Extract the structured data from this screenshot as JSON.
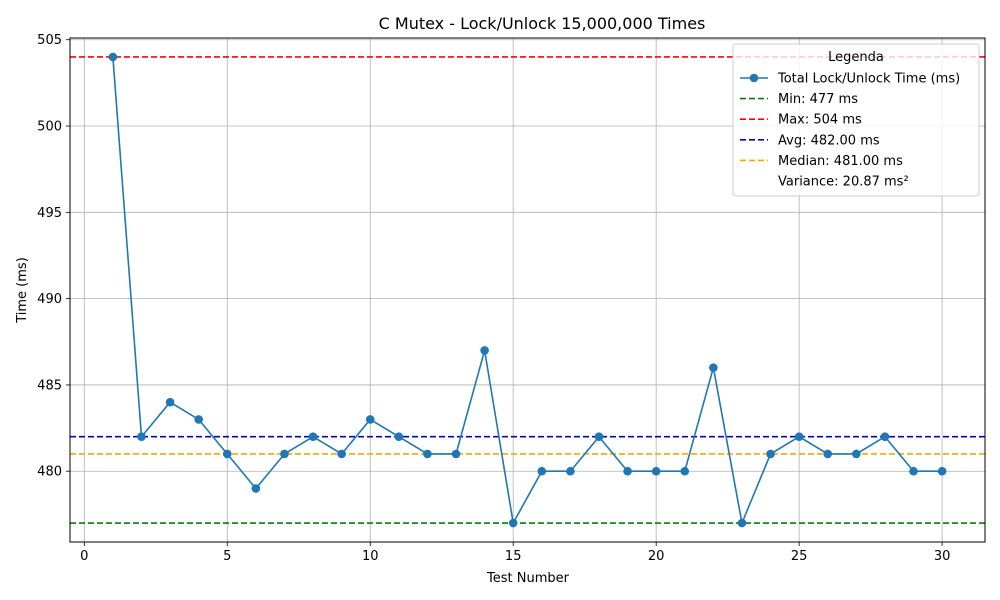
{
  "chart_data": {
    "type": "line",
    "title": "C Mutex - Lock/Unlock 15,000,000 Times",
    "xlabel": "Test Number",
    "ylabel": "Time (ms)",
    "xlim": [
      -0.5,
      31.5
    ],
    "ylim": [
      475.9,
      505.1
    ],
    "xticks": [
      0,
      5,
      10,
      15,
      20,
      25,
      30
    ],
    "yticks": [
      480,
      485,
      490,
      495,
      500,
      505
    ],
    "grid": true,
    "legend_position": "top-right",
    "legend_title": "Legenda",
    "series": [
      {
        "name": "Total Lock/Unlock Time (ms)",
        "color": "#1f77b4",
        "x": [
          1,
          2,
          3,
          4,
          5,
          6,
          7,
          8,
          9,
          10,
          11,
          12,
          13,
          14,
          15,
          16,
          17,
          18,
          19,
          20,
          21,
          22,
          23,
          24,
          25,
          26,
          27,
          28,
          29,
          30
        ],
        "values": [
          504,
          482,
          484,
          483,
          481,
          479,
          481,
          482,
          481,
          483,
          482,
          481,
          481,
          487,
          477,
          480,
          480,
          482,
          480,
          480,
          480,
          486,
          477,
          481,
          482,
          481,
          481,
          482,
          480,
          480
        ]
      }
    ],
    "reference_lines": [
      {
        "name": "Min: 477 ms",
        "value": 477,
        "color": "#008000"
      },
      {
        "name": "Max: 504 ms",
        "value": 504,
        "color": "#ff0000"
      },
      {
        "name": "Avg: 482.00 ms",
        "value": 482,
        "color": "#0000cc"
      },
      {
        "name": "Median: 481.00 ms",
        "value": 481,
        "color": "#ffa500"
      }
    ],
    "legend_note": "Variance: 20.87 ms²"
  }
}
